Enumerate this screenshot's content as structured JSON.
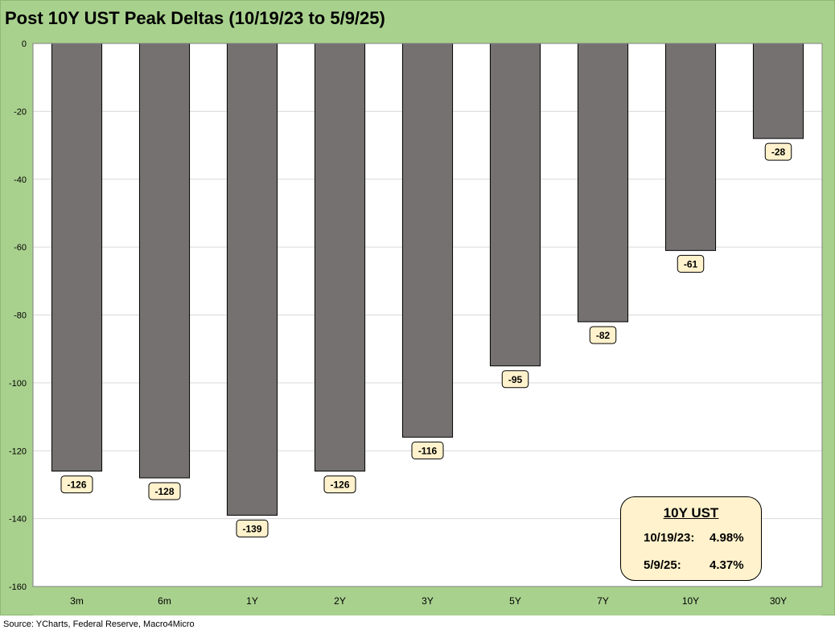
{
  "title": "Post 10Y UST Peak Deltas (10/19/23 to 5/9/25)",
  "source": "Source: YCharts, Federal Reserve, Macro4Micro",
  "colors": {
    "frame": "#a9d18e",
    "plot_background": "#ffffff",
    "bar_fill": "#767171",
    "bar_stroke": "#000000",
    "label_fill": "#fff2cc",
    "gridline": "#d9d9d9"
  },
  "info_box": {
    "title": "10Y UST",
    "rows": [
      {
        "date": "10/19/23:",
        "value": "4.98%"
      },
      {
        "date": "5/9/25:",
        "value": "4.37%"
      }
    ]
  },
  "chart_data": {
    "type": "bar",
    "title": "Post 10Y UST Peak Deltas (10/19/23 to 5/9/25)",
    "categories": [
      "3m",
      "6m",
      "1Y",
      "2Y",
      "3Y",
      "5Y",
      "7Y",
      "10Y",
      "30Y"
    ],
    "values": [
      -126,
      -128,
      -139,
      -126,
      -116,
      -95,
      -82,
      -61,
      -28
    ],
    "data_labels": [
      "-126",
      "-128",
      "-139",
      "-126",
      "-116",
      "-95",
      "-82",
      "-61",
      "-28"
    ],
    "ylim": [
      -160,
      0
    ],
    "yticks": [
      0,
      -20,
      -40,
      -60,
      -80,
      -100,
      -120,
      -140,
      -160
    ],
    "ytick_labels": [
      "0",
      "-20",
      "-40",
      "-60",
      "-80",
      "-100",
      "-120",
      "-140",
      "-160"
    ],
    "grid": true,
    "legend": "none",
    "xlabel": "",
    "ylabel": ""
  }
}
